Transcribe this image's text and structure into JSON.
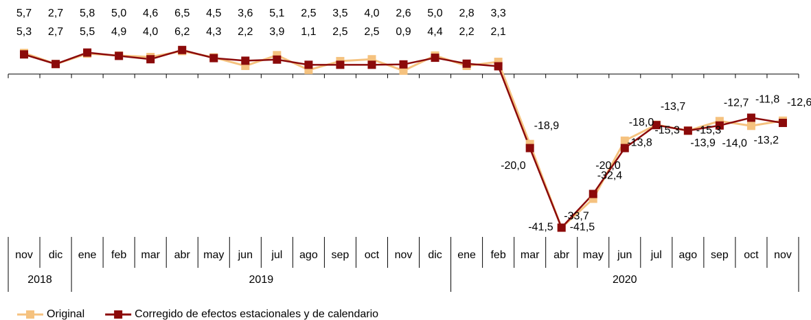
{
  "chart_data": {
    "type": "line",
    "categories": [
      "nov",
      "dic",
      "ene",
      "feb",
      "mar",
      "abr",
      "may",
      "jun",
      "jul",
      "ago",
      "sep",
      "oct",
      "nov",
      "dic",
      "ene",
      "feb",
      "mar",
      "abr",
      "may",
      "jun",
      "jul",
      "ago",
      "sep",
      "oct",
      "nov"
    ],
    "category_years": [
      "2018",
      "2018",
      "2019",
      "2019",
      "2019",
      "2019",
      "2019",
      "2019",
      "2019",
      "2019",
      "2019",
      "2019",
      "2019",
      "2019",
      "2020",
      "2020",
      "2020",
      "2020",
      "2020",
      "2020",
      "2020",
      "2020",
      "2020",
      "2020",
      "2020"
    ],
    "ylim": [
      -44,
      20
    ],
    "legend": "bottom-left",
    "series": [
      {
        "name": "Original",
        "color": "#f5c27f",
        "values": [
          5.7,
          2.7,
          5.5,
          5.0,
          4.6,
          6.2,
          4.5,
          2.2,
          5.1,
          1.1,
          3.5,
          4.0,
          0.9,
          5.0,
          2.2,
          3.3,
          -18.9,
          -41.5,
          -33.7,
          -18.0,
          -13.7,
          -15.3,
          -12.7,
          -14.0,
          -12.6
        ],
        "value_labels": [
          "5,7",
          "2,7",
          "5,5",
          "5,0",
          "4,6",
          "6,2",
          "4,5",
          "2,2",
          "5,1",
          "1,1",
          "3,5",
          "4,0",
          "0,9",
          "5,0",
          "2,2",
          "3,3",
          "-18,9",
          "-41,5",
          "-33,7",
          "-18,0",
          "-13,7",
          "-15,3",
          "-12,7",
          "-14,0",
          "-12,6"
        ]
      },
      {
        "name": "Corregido de efectos estacionales y de calendario",
        "color": "#8b0a0a",
        "values": [
          5.3,
          2.7,
          5.8,
          4.9,
          4.0,
          6.5,
          4.3,
          3.6,
          3.9,
          2.5,
          2.5,
          2.5,
          2.6,
          4.4,
          2.8,
          2.1,
          -20.0,
          -41.5,
          -32.4,
          -20.0,
          -13.8,
          -15.3,
          -13.9,
          -11.8,
          -13.2
        ],
        "value_labels": [
          "5,3",
          "2,7",
          "5,8",
          "4,9",
          "4,0",
          "6,5",
          "4,3",
          "3,6",
          "3,9",
          "2,5",
          "2,5",
          "2,5",
          "2,6",
          "4,4",
          "2,8",
          "2,1",
          "-20,0",
          "-41,5",
          "-32,4",
          "-20,0",
          "-13,8",
          "-15,3",
          "-13,9",
          "-11,8",
          "-13,2"
        ]
      }
    ]
  }
}
